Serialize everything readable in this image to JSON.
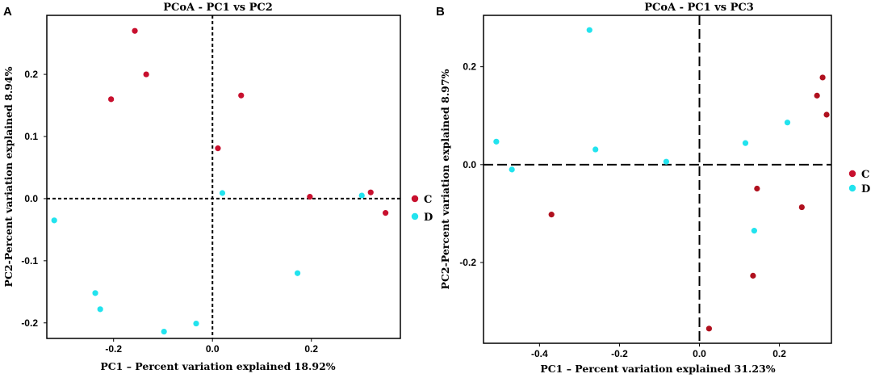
{
  "chart_data": [
    {
      "panel": "A",
      "type": "scatter",
      "title": "PCoA - PC1 vs PC2",
      "xlabel": "PC1 – Percent variation explained 18.92%",
      "ylabel": "PC2-Percent variation explained 8.94%",
      "xlim": [
        -0.335,
        0.38
      ],
      "ylim": [
        -0.225,
        0.295
      ],
      "xticks": [
        {
          "value": -0.2,
          "label": "-0.2"
        },
        {
          "value": 0.0,
          "label": "0.0"
        },
        {
          "value": 0.2,
          "label": "0.2"
        }
      ],
      "yticks": [
        {
          "value": 0.2,
          "label": "0.2"
        },
        {
          "value": 0.1,
          "label": "0.1"
        },
        {
          "value": 0.0,
          "label": "0.0"
        },
        {
          "value": -0.1,
          "label": "-0.1"
        },
        {
          "value": -0.2,
          "label": "-0.2"
        }
      ],
      "ref_lines": {
        "x": 0.0,
        "y": 0.0,
        "style": "short-dash"
      },
      "series": [
        {
          "name": "C",
          "color": "#c8102e",
          "points": [
            [
              -0.157,
              0.27
            ],
            [
              -0.134,
              0.2
            ],
            [
              -0.205,
              0.16
            ],
            [
              0.058,
              0.166
            ],
            [
              0.011,
              0.081
            ],
            [
              0.197,
              0.003
            ],
            [
              0.32,
              0.01
            ],
            [
              0.35,
              -0.023
            ]
          ]
        },
        {
          "name": "D",
          "color": "#22e3ee",
          "points": [
            [
              -0.32,
              -0.035
            ],
            [
              0.02,
              0.009
            ],
            [
              0.302,
              0.005
            ],
            [
              0.172,
              -0.12
            ],
            [
              -0.237,
              -0.152
            ],
            [
              -0.227,
              -0.178
            ],
            [
              -0.033,
              -0.201
            ],
            [
              -0.098,
              -0.214
            ]
          ]
        }
      ],
      "legend": [
        {
          "label": "C",
          "color": "#c8102e"
        },
        {
          "label": "D",
          "color": "#22e3ee"
        }
      ]
    },
    {
      "panel": "B",
      "type": "scatter",
      "title": "PCoA - PC1 vs PC3",
      "xlabel": "PC1 – Percent variation explained 31.23%",
      "ylabel": "PC2-Percent variation explained 8.97%",
      "xlim": [
        -0.54,
        0.33
      ],
      "ylim": [
        -0.365,
        0.305
      ],
      "xticks": [
        {
          "value": -0.4,
          "label": "-0.4"
        },
        {
          "value": -0.2,
          "label": "-0.2"
        },
        {
          "value": 0.0,
          "label": "0.0"
        },
        {
          "value": 0.2,
          "label": "0.2"
        }
      ],
      "yticks": [
        {
          "value": 0.2,
          "label": "0.2"
        },
        {
          "value": 0.0,
          "label": "0.0"
        },
        {
          "value": -0.2,
          "label": "-0.2"
        }
      ],
      "ref_lines": {
        "x": 0.0,
        "y": 0.0,
        "style": "long-dash"
      },
      "series": [
        {
          "name": "C",
          "color": "#b0101e",
          "points": [
            [
              0.308,
              0.178
            ],
            [
              0.294,
              0.141
            ],
            [
              0.318,
              0.102
            ],
            [
              0.144,
              -0.049
            ],
            [
              0.256,
              -0.087
            ],
            [
              -0.37,
              -0.102
            ],
            [
              0.134,
              -0.227
            ],
            [
              0.024,
              -0.335
            ]
          ]
        },
        {
          "name": "D",
          "color": "#22e3ee",
          "points": [
            [
              -0.275,
              0.275
            ],
            [
              0.22,
              0.086
            ],
            [
              -0.508,
              0.047
            ],
            [
              0.115,
              0.044
            ],
            [
              -0.26,
              0.031
            ],
            [
              -0.083,
              0.006
            ],
            [
              -0.469,
              -0.01
            ],
            [
              0.137,
              -0.135
            ]
          ]
        }
      ],
      "legend": [
        {
          "label": "C",
          "color": "#c8102e"
        },
        {
          "label": "D",
          "color": "#22e3ee"
        }
      ]
    }
  ]
}
